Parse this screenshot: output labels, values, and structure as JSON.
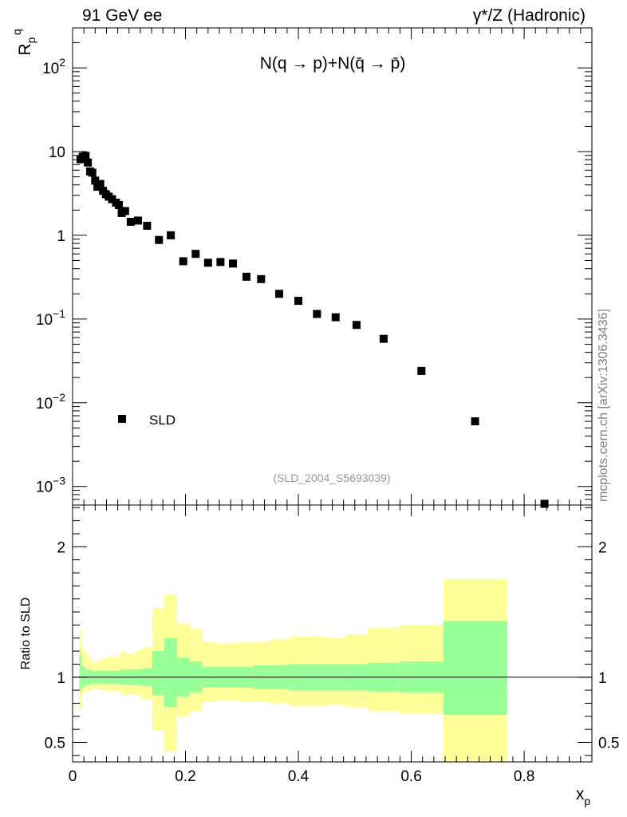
{
  "header": {
    "left": "91 GeV ee",
    "right": "γ*/Z (Hadronic)"
  },
  "side_label": "mcplots.cern.ch [arXiv:1306.3436]",
  "chart_data": [
    {
      "type": "scatter",
      "panel": "main",
      "title": "N(q → p)+N(q̄ → p̄)",
      "ylabel": "R_p^q",
      "xlabel": "x_p",
      "yscale": "log",
      "xlim": [
        0,
        0.92
      ],
      "ylim": [
        0.0006,
        300
      ],
      "ytick_labels": [
        "10^-3",
        "10^-2",
        "10^-1",
        "1",
        "10",
        "10^2"
      ],
      "xtick_labels": [
        "0",
        "0.2",
        "0.4",
        "0.6",
        "0.8"
      ],
      "legend": {
        "position": "bottom-left",
        "entries": [
          "SLD"
        ]
      },
      "annotation": "(SLD_2004_S5693039)",
      "series": [
        {
          "name": "SLD",
          "marker": "square",
          "color": "#000000",
          "points": [
            [
              0.014,
              8.1
            ],
            [
              0.018,
              8.7
            ],
            [
              0.023,
              8.9
            ],
            [
              0.027,
              7.4
            ],
            [
              0.031,
              5.8
            ],
            [
              0.035,
              5.6
            ],
            [
              0.04,
              4.5
            ],
            [
              0.044,
              3.8
            ],
            [
              0.049,
              4.1
            ],
            [
              0.054,
              3.4
            ],
            [
              0.059,
              3.1
            ],
            [
              0.064,
              2.9
            ],
            [
              0.07,
              2.7
            ],
            [
              0.077,
              2.45
            ],
            [
              0.082,
              2.3
            ],
            [
              0.087,
              1.85
            ],
            [
              0.093,
              1.95
            ],
            [
              0.103,
              1.45
            ],
            [
              0.116,
              1.5
            ],
            [
              0.132,
              1.3
            ],
            [
              0.153,
              0.88
            ],
            [
              0.174,
              1.0
            ],
            [
              0.196,
              0.49
            ],
            [
              0.218,
              0.6
            ],
            [
              0.24,
              0.47
            ],
            [
              0.262,
              0.48
            ],
            [
              0.284,
              0.46
            ],
            [
              0.308,
              0.32
            ],
            [
              0.334,
              0.3
            ],
            [
              0.366,
              0.2
            ],
            [
              0.4,
              0.165
            ],
            [
              0.433,
              0.115
            ],
            [
              0.466,
              0.105
            ],
            [
              0.503,
              0.085
            ],
            [
              0.551,
              0.058
            ],
            [
              0.618,
              0.024
            ],
            [
              0.713,
              0.006
            ],
            [
              0.836,
              0.00062
            ]
          ]
        }
      ]
    },
    {
      "type": "area",
      "panel": "ratio",
      "ylabel": "Ratio to SLD",
      "xlabel": "x_p",
      "xlim": [
        0,
        0.92
      ],
      "ylim": [
        0.35,
        2.32
      ],
      "ytick_labels": [
        "0.5",
        "1",
        "2"
      ],
      "xtick_labels": [
        "0",
        "0.2",
        "0.4",
        "0.6",
        "0.8"
      ],
      "reference_line": 1,
      "colors": {
        "stat": "#99ff99",
        "total": "#ffff99"
      },
      "bands": [
        {
          "x0": 0.012,
          "x1": 0.016,
          "g": [
            0.9,
            1.18
          ],
          "y": [
            0.75,
            1.37
          ]
        },
        {
          "x0": 0.016,
          "x1": 0.021,
          "g": [
            0.92,
            1.08
          ],
          "y": [
            0.88,
            1.23
          ]
        },
        {
          "x0": 0.021,
          "x1": 0.025,
          "g": [
            0.93,
            1.07
          ],
          "y": [
            0.89,
            1.2
          ]
        },
        {
          "x0": 0.025,
          "x1": 0.029,
          "g": [
            0.94,
            1.06
          ],
          "y": [
            0.9,
            1.17
          ]
        },
        {
          "x0": 0.029,
          "x1": 0.033,
          "g": [
            0.94,
            1.06
          ],
          "y": [
            0.9,
            1.15
          ]
        },
        {
          "x0": 0.033,
          "x1": 0.038,
          "g": [
            0.95,
            1.05
          ],
          "y": [
            0.91,
            1.12
          ]
        },
        {
          "x0": 0.038,
          "x1": 0.042,
          "g": [
            0.95,
            1.05
          ],
          "y": [
            0.91,
            1.11
          ]
        },
        {
          "x0": 0.042,
          "x1": 0.047,
          "g": [
            0.95,
            1.05
          ],
          "y": [
            0.91,
            1.13
          ]
        },
        {
          "x0": 0.047,
          "x1": 0.052,
          "g": [
            0.95,
            1.05
          ],
          "y": [
            0.91,
            1.13
          ]
        },
        {
          "x0": 0.052,
          "x1": 0.057,
          "g": [
            0.95,
            1.05
          ],
          "y": [
            0.9,
            1.14
          ]
        },
        {
          "x0": 0.057,
          "x1": 0.062,
          "g": [
            0.95,
            1.05
          ],
          "y": [
            0.9,
            1.15
          ]
        },
        {
          "x0": 0.062,
          "x1": 0.067,
          "g": [
            0.95,
            1.05
          ],
          "y": [
            0.9,
            1.16
          ]
        },
        {
          "x0": 0.067,
          "x1": 0.074,
          "g": [
            0.95,
            1.05
          ],
          "y": [
            0.89,
            1.15
          ]
        },
        {
          "x0": 0.074,
          "x1": 0.08,
          "g": [
            0.95,
            1.05
          ],
          "y": [
            0.9,
            1.15
          ]
        },
        {
          "x0": 0.08,
          "x1": 0.085,
          "g": [
            0.95,
            1.05
          ],
          "y": [
            0.89,
            1.16
          ]
        },
        {
          "x0": 0.085,
          "x1": 0.09,
          "g": [
            0.94,
            1.06
          ],
          "y": [
            0.86,
            1.2
          ]
        },
        {
          "x0": 0.09,
          "x1": 0.097,
          "g": [
            0.94,
            1.06
          ],
          "y": [
            0.86,
            1.19
          ]
        },
        {
          "x0": 0.097,
          "x1": 0.11,
          "g": [
            0.94,
            1.06
          ],
          "y": [
            0.87,
            1.18
          ]
        },
        {
          "x0": 0.11,
          "x1": 0.123,
          "g": [
            0.94,
            1.06
          ],
          "y": [
            0.86,
            1.2
          ]
        },
        {
          "x0": 0.123,
          "x1": 0.141,
          "g": [
            0.93,
            1.07
          ],
          "y": [
            0.83,
            1.23
          ]
        },
        {
          "x0": 0.141,
          "x1": 0.162,
          "g": [
            0.86,
            1.2
          ],
          "y": [
            0.59,
            1.53
          ]
        },
        {
          "x0": 0.162,
          "x1": 0.185,
          "g": [
            0.77,
            1.3
          ],
          "y": [
            0.43,
            1.63
          ]
        },
        {
          "x0": 0.185,
          "x1": 0.207,
          "g": [
            0.85,
            1.15
          ],
          "y": [
            0.7,
            1.41
          ]
        },
        {
          "x0": 0.207,
          "x1": 0.229,
          "g": [
            0.88,
            1.12
          ],
          "y": [
            0.74,
            1.37
          ]
        },
        {
          "x0": 0.229,
          "x1": 0.251,
          "g": [
            0.92,
            1.08
          ],
          "y": [
            0.81,
            1.27
          ]
        },
        {
          "x0": 0.251,
          "x1": 0.273,
          "g": [
            0.92,
            1.08
          ],
          "y": [
            0.82,
            1.26
          ]
        },
        {
          "x0": 0.273,
          "x1": 0.295,
          "g": [
            0.92,
            1.08
          ],
          "y": [
            0.82,
            1.26
          ]
        },
        {
          "x0": 0.295,
          "x1": 0.321,
          "g": [
            0.92,
            1.08
          ],
          "y": [
            0.81,
            1.27
          ]
        },
        {
          "x0": 0.321,
          "x1": 0.348,
          "g": [
            0.91,
            1.09
          ],
          "y": [
            0.81,
            1.27
          ]
        },
        {
          "x0": 0.348,
          "x1": 0.383,
          "g": [
            0.91,
            1.09
          ],
          "y": [
            0.8,
            1.29
          ]
        },
        {
          "x0": 0.383,
          "x1": 0.416,
          "g": [
            0.9,
            1.1
          ],
          "y": [
            0.78,
            1.31
          ]
        },
        {
          "x0": 0.416,
          "x1": 0.449,
          "g": [
            0.9,
            1.1
          ],
          "y": [
            0.78,
            1.31
          ]
        },
        {
          "x0": 0.449,
          "x1": 0.483,
          "g": [
            0.9,
            1.1
          ],
          "y": [
            0.79,
            1.3
          ]
        },
        {
          "x0": 0.483,
          "x1": 0.523,
          "g": [
            0.9,
            1.1
          ],
          "y": [
            0.77,
            1.33
          ]
        },
        {
          "x0": 0.523,
          "x1": 0.579,
          "g": [
            0.89,
            1.11
          ],
          "y": [
            0.74,
            1.38
          ]
        },
        {
          "x0": 0.579,
          "x1": 0.657,
          "g": [
            0.88,
            1.12
          ],
          "y": [
            0.72,
            1.4
          ]
        },
        {
          "x0": 0.657,
          "x1": 0.77,
          "g": [
            0.71,
            1.43
          ],
          "y": [
            0.35,
            1.75
          ]
        }
      ]
    }
  ]
}
